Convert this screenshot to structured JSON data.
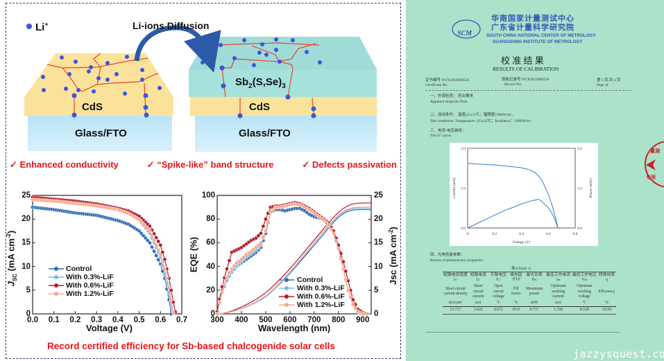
{
  "diagram": {
    "legend_li": {
      "base": "Li",
      "sup": "+"
    },
    "arrow_label": "Li-ions Diffusion",
    "left_layers": {
      "cds": "CdS",
      "glass": "Glass/FTO"
    },
    "right_layers": {
      "absorber": {
        "a": "Sb",
        "b": "2",
        "c": "(S,Se)",
        "d": "3"
      },
      "cds": "CdS",
      "glass": "Glass/FTO"
    },
    "bullets": [
      "✓ Enhanced conductivity",
      "✓ “Spike-like” band structure",
      "✓ Defects passivation"
    ],
    "caption": "Record certified efficiency for Sb-based chalcogenide solar cells",
    "colors": {
      "cds": "#fbe29a",
      "glass": "#bfe6f6",
      "absorber": "#a5ded9",
      "ion": "#3a55e0",
      "grain": "#e8452c",
      "bullet": "#e8141c"
    }
  },
  "chart_data": [
    {
      "type": "line",
      "title": "",
      "xlabel": "Voltage (V)",
      "ylabel": {
        "base": "J",
        "sub": "SC",
        "rest": " (mA cm",
        "sup": "-2",
        "end": ")"
      },
      "xlim": [
        0,
        0.7
      ],
      "ylim": [
        0,
        25
      ],
      "xticks": [
        "0.0",
        "0.1",
        "0.2",
        "0.3",
        "0.4",
        "0.5",
        "0.6",
        "0.7"
      ],
      "yticks": [
        "0",
        "5",
        "10",
        "15",
        "20",
        "25"
      ],
      "legend_position": "bottom-left",
      "series": [
        {
          "name": "Control",
          "color": "#2f6db5",
          "x": [
            0,
            0.1,
            0.2,
            0.3,
            0.4,
            0.45,
            0.5,
            0.55,
            0.6,
            0.62,
            0.64,
            0.65
          ],
          "y": [
            22.5,
            22.0,
            21.3,
            20.8,
            19.7,
            18.9,
            17.5,
            15.0,
            10.5,
            7.5,
            3.0,
            0
          ]
        },
        {
          "name": "With 0.3%-LiF",
          "color": "#7bbbe6",
          "x": [
            0,
            0.1,
            0.2,
            0.3,
            0.4,
            0.45,
            0.5,
            0.55,
            0.6,
            0.62,
            0.64,
            0.655
          ],
          "y": [
            24.3,
            24.0,
            23.5,
            23.0,
            22.0,
            21.3,
            19.8,
            17.0,
            12.0,
            8.5,
            4.5,
            0
          ]
        },
        {
          "name": "With 0.6%-LiF",
          "color": "#b8172a",
          "x": [
            0,
            0.1,
            0.2,
            0.3,
            0.4,
            0.45,
            0.5,
            0.55,
            0.6,
            0.62,
            0.64,
            0.66,
            0.672
          ],
          "y": [
            24.6,
            24.2,
            23.8,
            23.2,
            22.3,
            21.7,
            20.6,
            18.5,
            14.5,
            11.5,
            7.5,
            2.5,
            0
          ]
        },
        {
          "name": "With 1.2%-LiF",
          "color": "#f5a98a",
          "x": [
            0,
            0.1,
            0.2,
            0.3,
            0.4,
            0.45,
            0.5,
            0.55,
            0.6,
            0.62,
            0.64,
            0.66
          ],
          "y": [
            24.1,
            23.8,
            23.3,
            22.8,
            22.0,
            21.2,
            19.9,
            17.5,
            12.5,
            9.5,
            5.5,
            0.3
          ]
        }
      ]
    },
    {
      "type": "line",
      "title": "",
      "xlabel": "Wavelength (nm)",
      "ylabel": "EQE (%)",
      "ylabel_right": "Jsc (mA cm-2)",
      "ylabel_right_parts": {
        "base": "Jsc (mA cm",
        "sup": "-2",
        "end": ")"
      },
      "xlim": [
        300,
        935
      ],
      "ylim": [
        0,
        100
      ],
      "ylim_right": [
        0,
        25
      ],
      "xticks": [
        "300",
        "400",
        "500",
        "600",
        "700",
        "800",
        "900"
      ],
      "yticks": [
        "0",
        "20",
        "40",
        "60",
        "80",
        "100"
      ],
      "yticks_right": [
        "0",
        "5",
        "10",
        "15",
        "20",
        "25"
      ],
      "legend_position": "bottom-center",
      "x": [
        300,
        320,
        340,
        360,
        380,
        400,
        420,
        440,
        460,
        480,
        500,
        520,
        540,
        560,
        580,
        600,
        620,
        640,
        660,
        680,
        700,
        720,
        740,
        760,
        780,
        800,
        820,
        840,
        860,
        880,
        900,
        920
      ],
      "series": [
        {
          "name": "Control",
          "color": "#2f6db5",
          "eqe": [
            0,
            20,
            30,
            36,
            40,
            43,
            46,
            49,
            52,
            56,
            68,
            86,
            88,
            88,
            87,
            88,
            89,
            89,
            87,
            84,
            82,
            81,
            80,
            77,
            70,
            57,
            38,
            20,
            8,
            1,
            0,
            0
          ],
          "integrated_jsc_final": 22.0
        },
        {
          "name": "With 0.3%-LiF",
          "color": "#7bbbe6",
          "eqe": [
            0,
            18,
            28,
            35,
            40,
            44,
            48,
            51,
            54,
            58,
            70,
            86,
            90,
            90,
            91,
            92,
            93,
            93,
            91,
            88,
            85,
            82,
            79,
            75,
            68,
            55,
            38,
            20,
            8,
            2,
            0,
            0
          ],
          "integrated_jsc_final": 22.3
        },
        {
          "name": "With 0.6%-LiF",
          "color": "#b8172a",
          "eqe": [
            2,
            23,
            38,
            52,
            54,
            56,
            59,
            62,
            64,
            68,
            80,
            90,
            91,
            91,
            92,
            93,
            94,
            93,
            91,
            89,
            86,
            83,
            80,
            76,
            70,
            58,
            44,
            28,
            12,
            4,
            1,
            0
          ],
          "integrated_jsc_final": 23.4
        },
        {
          "name": "With 1.2%-LiF",
          "color": "#f5a98a",
          "eqe": [
            0,
            19,
            31,
            38,
            43,
            46,
            50,
            53,
            56,
            60,
            70,
            86,
            90,
            90,
            91,
            92,
            93,
            92,
            90,
            88,
            85,
            82,
            79,
            75,
            68,
            55,
            38,
            20,
            8,
            2,
            0,
            0
          ],
          "integrated_jsc_final": 22.5
        }
      ]
    },
    {
      "type": "line",
      "title": "The IV curve",
      "xlabel": "Voltage (V)",
      "ylabel": "Current (mA)",
      "ylabel_right": "Power (mW)",
      "xlim": [
        0,
        0.8
      ],
      "ylim": [
        0,
        2.0
      ],
      "ylim_right": [
        0,
        2.0
      ],
      "xticks": [
        "0",
        "0.2",
        "0.4",
        "0.6",
        "0.8"
      ],
      "yticks": [
        "0.0",
        "1.0",
        "2.0"
      ],
      "yticks_right": [
        "0.0",
        "1.0",
        "2.0"
      ],
      "series": [
        {
          "name": "Current",
          "color": "#3a78bf",
          "x": [
            0,
            0.1,
            0.2,
            0.3,
            0.4,
            0.45,
            0.5,
            0.55,
            0.6,
            0.63,
            0.65,
            0.672
          ],
          "y": [
            1.622,
            1.6,
            1.58,
            1.55,
            1.51,
            1.47,
            1.4,
            1.22,
            0.85,
            0.55,
            0.3,
            0
          ]
        },
        {
          "name": "Power",
          "color": "#3a78bf",
          "x": [
            0,
            0.1,
            0.2,
            0.3,
            0.4,
            0.45,
            0.5,
            0.528,
            0.55,
            0.6,
            0.63,
            0.65,
            0.672
          ],
          "y": [
            0,
            0.16,
            0.32,
            0.47,
            0.6,
            0.66,
            0.7,
            0.717,
            0.67,
            0.51,
            0.35,
            0.2,
            0
          ]
        }
      ]
    }
  ],
  "certificate": {
    "logo": "SCM",
    "org_cn_1": "华南国家计量测试中心",
    "org_cn_2": "广东省计量科学研究院",
    "org_en_1": "SOUTH CHINA NATIONAL CENTER OF METROLOGY",
    "org_en_2": "GUANGDONG INSTITUTE OF METROLOGY",
    "title_cn": "校 准 结 果",
    "title_en": "RESULTS OF CALIBRATION",
    "cert_no_cn": "证书编号 NYX2023000558",
    "cert_no_en": "Certificate No.",
    "record_no_cn": "原始记录号 NYX2023000558",
    "record_no_en": "Record No.",
    "page_cn": "第 3 页,共 4 页",
    "page_en": "Page    of",
    "s1_cn": "一、外观检查：    符合要求",
    "s1_en": "Apparent Inspectio Pass.",
    "s2_cn": "二、测试条件：          温度(25±2)℃；辐照度1000W/m²。",
    "s2_en": "Test conditions:      Temperature: (25±2)℃；Irradiance：1000W/m².",
    "s3_cn": "三、电流-电压曲线：",
    "s3_en": "The IV curve:",
    "s4_cn": "四、光电性能参数：",
    "s4_en": "Results of photoelectric properties:",
    "table_title": "表1(Table 1)",
    "table": {
      "cn": [
        "短路电流密度Jₛᶜ",
        "短路电流Iₛᶜ",
        "开路电压Vₒᶜ",
        "填充因子FF",
        "最大功率Pₘ",
        "最佳工作电流Iₘ",
        "最佳工作电压Vₘ",
        "转换效率η"
      ],
      "en": [
        "Short circuit current density",
        "Short circuit current",
        "Open circuit voltage",
        "Fill factor",
        "Maximum power",
        "Optimum working current",
        "Optimum working voltage",
        "Efficiency"
      ],
      "units": [
        "mA/cm²",
        "mA",
        "V",
        "%",
        "mW",
        "mA",
        "V",
        "%"
      ],
      "values": [
        "23.717",
        "1.622",
        "0.672",
        "65.9",
        "0.717",
        "1.358",
        "0.528",
        "10.50"
      ]
    },
    "stamp_text_1": "量测",
    "stamp_text_2": "专用"
  },
  "watermark": "jazzysquest.com"
}
